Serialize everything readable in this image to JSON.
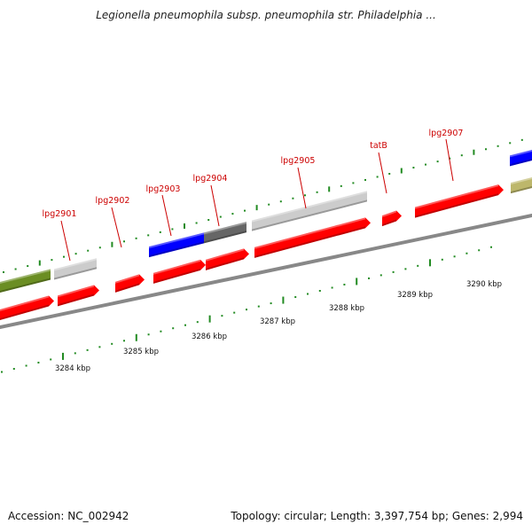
{
  "title": "Legionella pneumophila subsp. pneumophila str. Philadelphia ...",
  "accession": "Accession: NC_002942",
  "summary": "Topology: circular; Length: 3,397,754 bp; Genes: 2,994",
  "colors": {
    "cds": "#ff0000",
    "misc_light": "#cccccc",
    "misc_dark": "#666666",
    "blue": "#0000ff",
    "olive": "#6b8e23",
    "khaki": "#bdb76b",
    "label": "#cc0000",
    "tick": "#228b22",
    "backbone": "#888888"
  },
  "gene_labels": [
    "lpg2901",
    "lpg2902",
    "lpg2903",
    "lpg2904",
    "lpg2905",
    "tatB",
    "lpg2907"
  ],
  "scale_labels": [
    "3284 kbp",
    "3285 kbp",
    "3286 kbp",
    "3287 kbp",
    "3288 kbp",
    "3289 kbp",
    "3290 kbp"
  ]
}
